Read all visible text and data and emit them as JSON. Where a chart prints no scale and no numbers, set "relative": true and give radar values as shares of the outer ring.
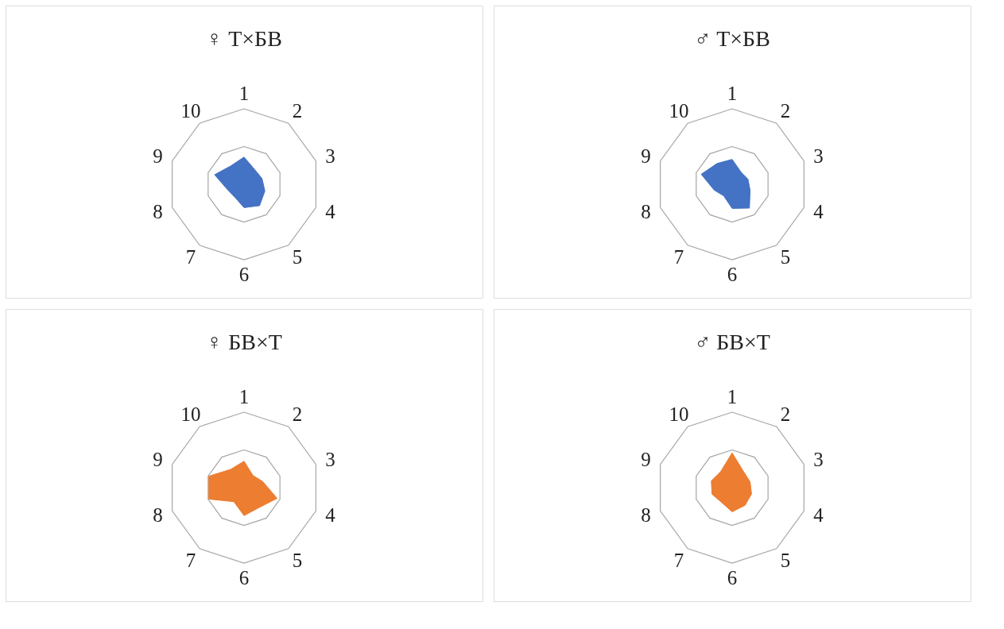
{
  "chart_data": [
    {
      "type": "radar",
      "title": "♀ Т×БВ",
      "categories": [
        "1",
        "2",
        "3",
        "4",
        "5",
        "6",
        "7",
        "8",
        "9",
        "10"
      ],
      "relative": true,
      "grid": true,
      "series": [
        {
          "color": "#4472c4",
          "values": [
            0.36,
            0.24,
            0.25,
            0.29,
            0.35,
            0.31,
            0.21,
            0.23,
            0.41,
            0.3
          ]
        }
      ]
    },
    {
      "type": "radar",
      "title": "♂ Т×БВ",
      "categories": [
        "1",
        "2",
        "3",
        "4",
        "5",
        "6",
        "7",
        "8",
        "9",
        "10"
      ],
      "relative": true,
      "grid": true,
      "series": [
        {
          "color": "#4472c4",
          "values": [
            0.33,
            0.2,
            0.22,
            0.25,
            0.39,
            0.32,
            0.19,
            0.25,
            0.43,
            0.34
          ]
        }
      ]
    },
    {
      "type": "radar",
      "title": "♀ БВ×Т",
      "categories": [
        "1",
        "2",
        "3",
        "4",
        "5",
        "6",
        "7",
        "8",
        "9",
        "10"
      ],
      "relative": true,
      "grid": true,
      "series": [
        {
          "color": "#ed7d31",
          "values": [
            0.35,
            0.2,
            0.26,
            0.46,
            0.33,
            0.37,
            0.23,
            0.49,
            0.49,
            0.3
          ]
        }
      ]
    },
    {
      "type": "radar",
      "title": "♂ БВ×Т",
      "categories": [
        "1",
        "2",
        "3",
        "4",
        "5",
        "6",
        "7",
        "8",
        "9",
        "10"
      ],
      "relative": true,
      "grid": true,
      "series": [
        {
          "color": "#ed7d31",
          "values": [
            0.46,
            0.26,
            0.25,
            0.27,
            0.29,
            0.32,
            0.24,
            0.28,
            0.29,
            0.26
          ]
        }
      ]
    }
  ]
}
